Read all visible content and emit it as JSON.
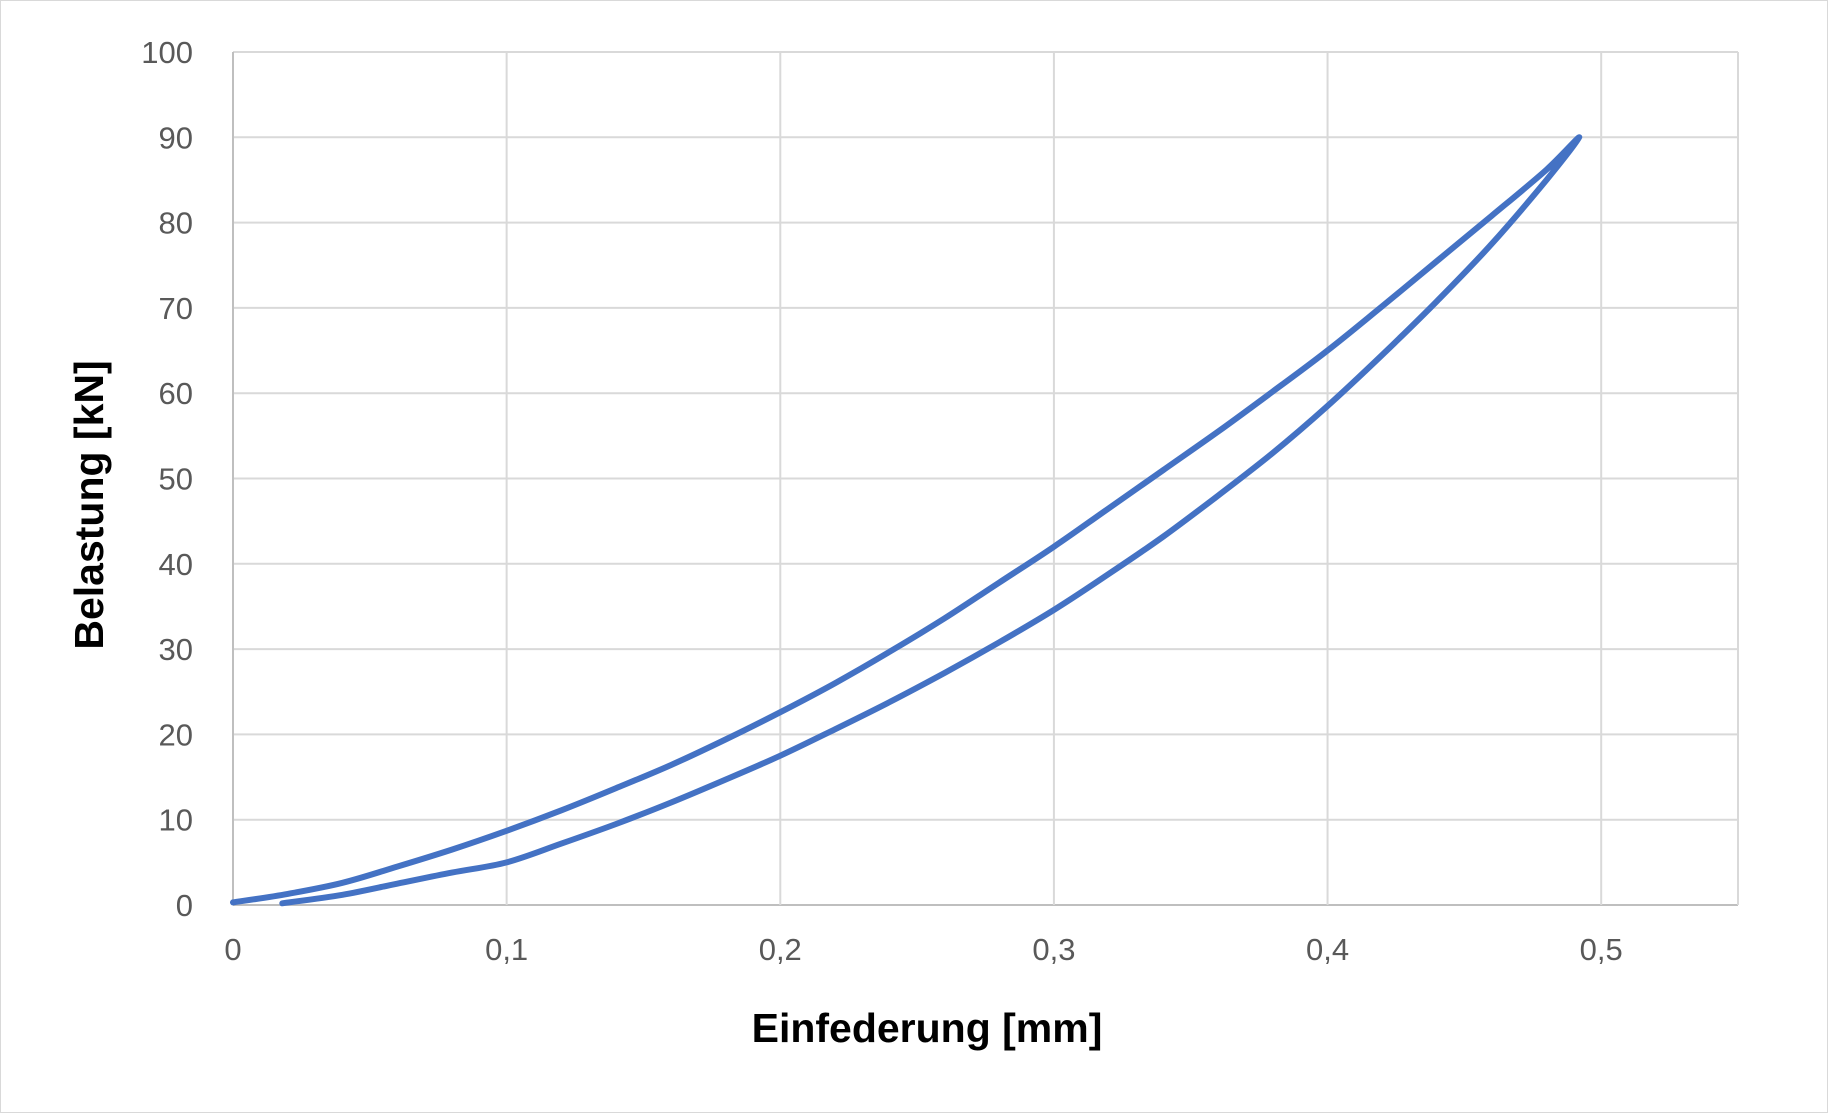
{
  "chart_data": {
    "type": "scatter",
    "title": "",
    "xlabel": "Einfederung [mm]",
    "ylabel": "Belastung [kN]",
    "xlim": [
      0,
      0.55
    ],
    "ylim": [
      0,
      100
    ],
    "x_ticks": [
      "0",
      "0,1",
      "0,2",
      "0,3",
      "0,4",
      "0,5"
    ],
    "x_tick_values": [
      0,
      0.1,
      0.2,
      0.3,
      0.4,
      0.5
    ],
    "y_ticks": [
      "0",
      "10",
      "20",
      "30",
      "40",
      "50",
      "60",
      "70",
      "80",
      "90",
      "100"
    ],
    "y_tick_values": [
      0,
      10,
      20,
      30,
      40,
      50,
      60,
      70,
      80,
      90,
      100
    ],
    "grid": true,
    "legend": "none",
    "series": [
      {
        "color": "#4472c4",
        "x": [
          0.018,
          0.04,
          0.06,
          0.08,
          0.1,
          0.12,
          0.14,
          0.16,
          0.18,
          0.2,
          0.22,
          0.24,
          0.26,
          0.28,
          0.3,
          0.32,
          0.34,
          0.36,
          0.38,
          0.4,
          0.42,
          0.44,
          0.46,
          0.48,
          0.492,
          0.48,
          0.46,
          0.44,
          0.42,
          0.4,
          0.38,
          0.36,
          0.34,
          0.32,
          0.3,
          0.28,
          0.26,
          0.24,
          0.22,
          0.2,
          0.18,
          0.16,
          0.14,
          0.12,
          0.1,
          0.08,
          0.06,
          0.04,
          0.02,
          0
        ],
        "y": [
          0.2,
          1.2,
          2.5,
          3.8,
          5.0,
          7.2,
          9.5,
          12.0,
          14.7,
          17.5,
          20.6,
          23.8,
          27.2,
          30.8,
          34.6,
          38.8,
          43.2,
          48.0,
          53.0,
          58.5,
          64.5,
          70.8,
          77.5,
          85.0,
          90.0,
          86.2,
          80.8,
          75.5,
          70.2,
          65.0,
          60.2,
          55.5,
          51.0,
          46.5,
          42.0,
          37.8,
          33.6,
          29.7,
          26.0,
          22.6,
          19.4,
          16.4,
          13.7,
          11.1,
          8.7,
          6.5,
          4.5,
          2.6,
          1.3,
          0.3
        ]
      }
    ]
  }
}
